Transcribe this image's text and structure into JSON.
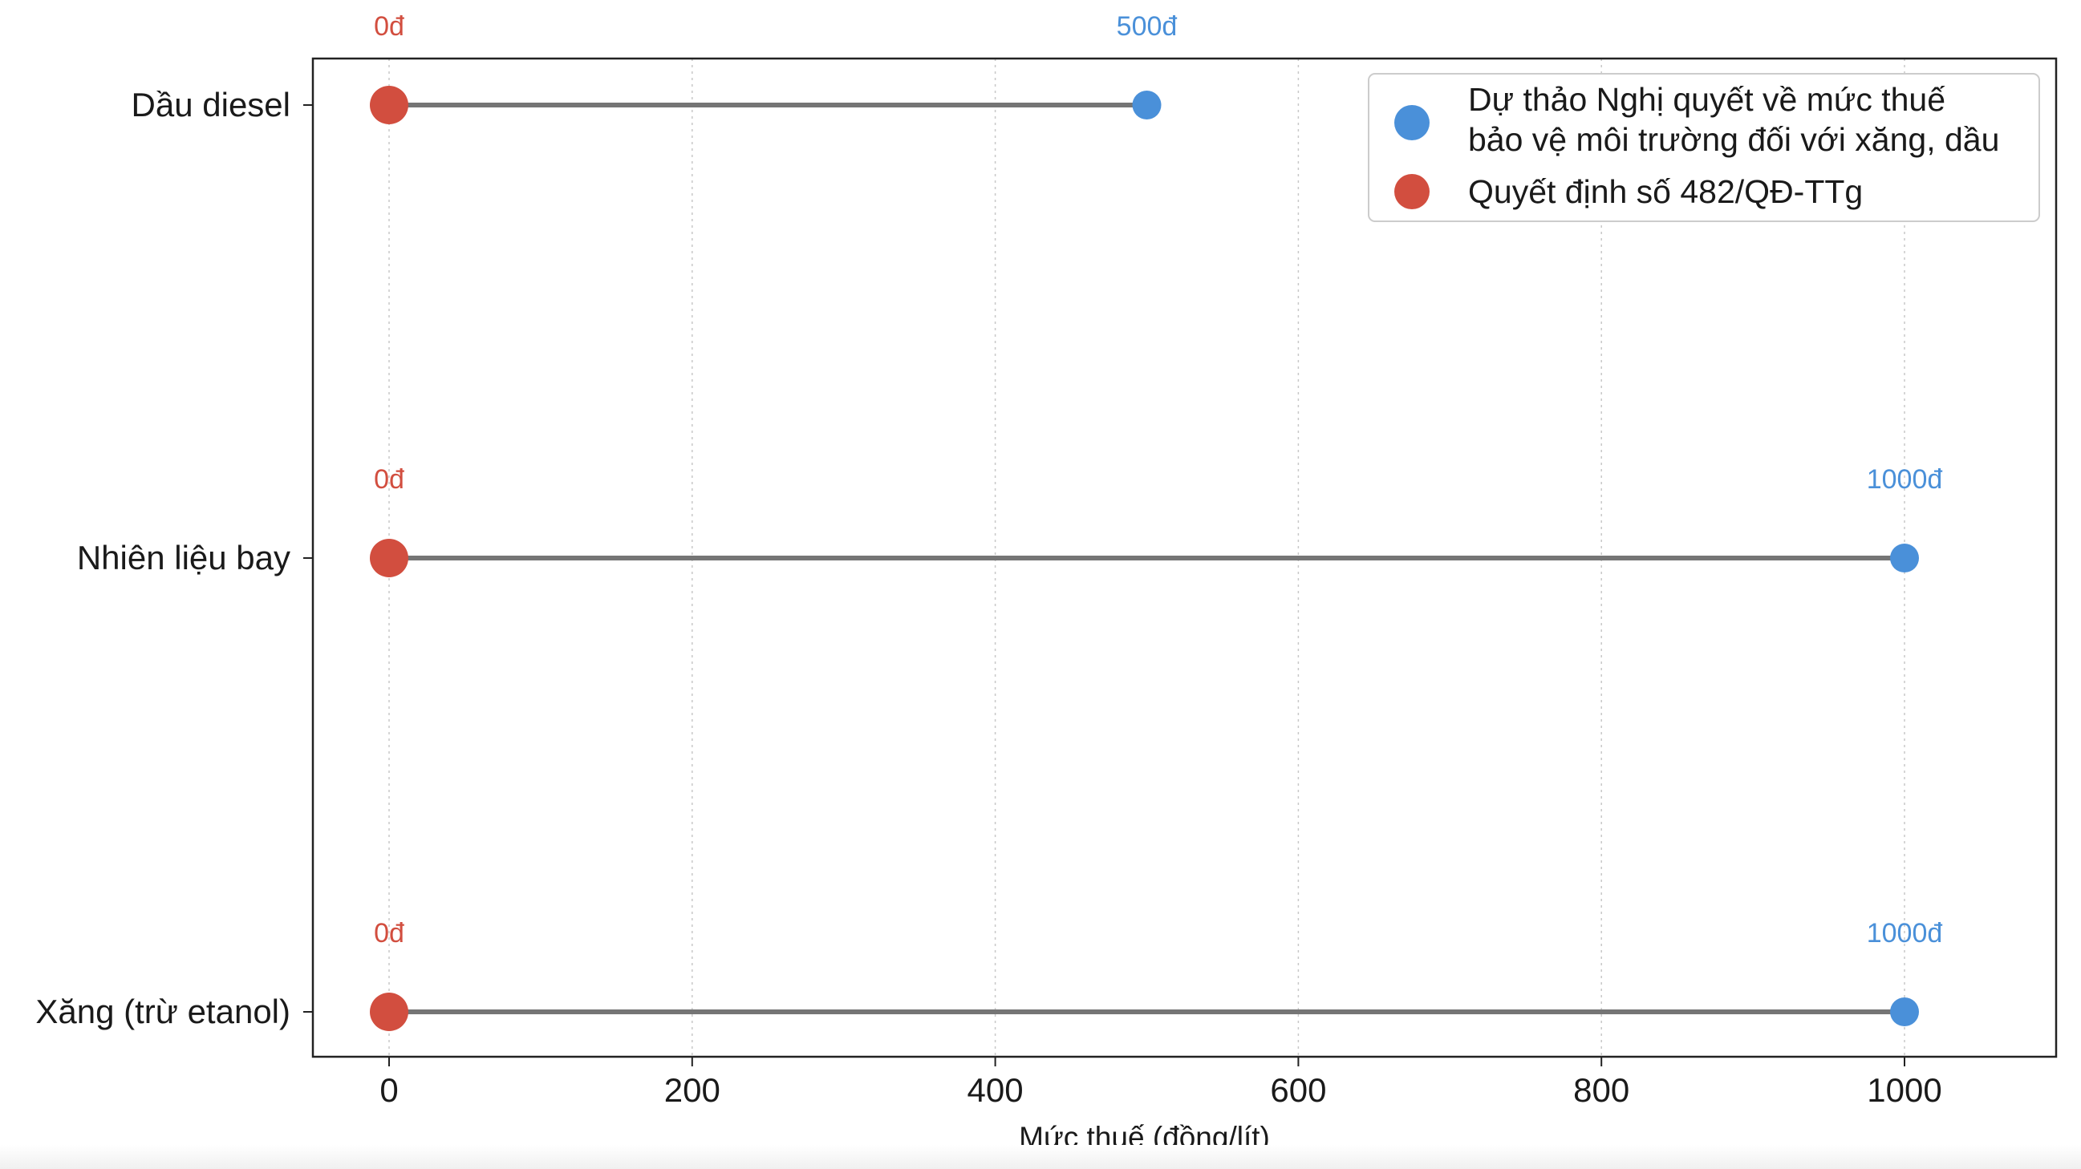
{
  "chart_data": {
    "type": "dumbbell",
    "title": "",
    "xlabel": "Mức thuế (đồng/lít)",
    "ylabel": "",
    "xlim": [
      -50,
      1100
    ],
    "xticks": [
      "0",
      "200",
      "400",
      "600",
      "800",
      "1000"
    ],
    "categories": [
      "Dầu diesel",
      "Nhiên liệu bay",
      "Xăng (trừ etanol)"
    ],
    "series": [
      {
        "name": "Dự thảo Nghị quyết về mức thuế bảo vệ môi trường đối với xăng, dầu",
        "legend_lines": [
          "Dự thảo Nghị quyết về mức thuế",
          "bảo vệ môi trường đối với xăng, dầu"
        ],
        "color": "#4a90d9",
        "values": [
          500,
          1000,
          1000
        ],
        "labels": [
          "500đ",
          "1000đ",
          "1000đ"
        ]
      },
      {
        "name": "Quyết định số 482/QĐ-TTg",
        "legend_lines": [
          "Quyết định số 482/QĐ-TTg"
        ],
        "color": "#d24e3f",
        "values": [
          0,
          0,
          0
        ],
        "labels": [
          "0đ",
          "0đ",
          "0đ"
        ]
      }
    ],
    "connector_color": "#757575",
    "grid": "vertical dotted",
    "legend_position": "top-right"
  }
}
